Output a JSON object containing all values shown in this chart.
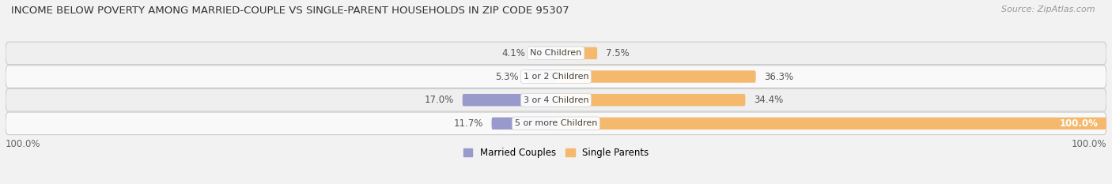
{
  "title": "INCOME BELOW POVERTY AMONG MARRIED-COUPLE VS SINGLE-PARENT HOUSEHOLDS IN ZIP CODE 95307",
  "source": "Source: ZipAtlas.com",
  "categories": [
    "No Children",
    "1 or 2 Children",
    "3 or 4 Children",
    "5 or more Children"
  ],
  "married_values": [
    4.1,
    5.3,
    17.0,
    11.7
  ],
  "single_values": [
    7.5,
    36.3,
    34.4,
    100.0
  ],
  "married_color": "#9999cc",
  "single_color": "#f5b96e",
  "bg_row_even": "#efefef",
  "bg_row_odd": "#f9f9f9",
  "figure_bg": "#f2f2f2",
  "max_value": 100.0,
  "title_fontsize": 9.5,
  "source_fontsize": 8,
  "label_fontsize": 8.5,
  "category_fontsize": 8,
  "legend_fontsize": 8.5,
  "axis_label_fontsize": 8.5
}
